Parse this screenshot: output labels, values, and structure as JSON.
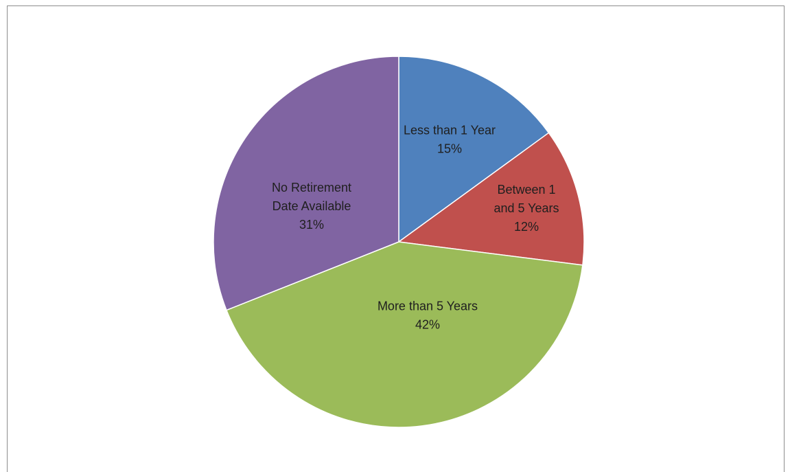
{
  "chart_data": {
    "type": "pie",
    "title": "",
    "start_angle_deg": 0,
    "direction": "clockwise",
    "slices": [
      {
        "label_lines": [
          "Less than 1 Year"
        ],
        "percent_label": "15%",
        "value": 15,
        "color": "#4f81bd"
      },
      {
        "label_lines": [
          "Between 1",
          "and 5 Years"
        ],
        "percent_label": "12%",
        "value": 12,
        "color": "#c0504d"
      },
      {
        "label_lines": [
          "More than 5 Years"
        ],
        "percent_label": "42%",
        "value": 42,
        "color": "#9bbb59"
      },
      {
        "label_lines": [
          "No Retirement",
          "Date Available"
        ],
        "percent_label": "31%",
        "value": 31,
        "color": "#8064a2"
      }
    ],
    "legend": "none"
  }
}
